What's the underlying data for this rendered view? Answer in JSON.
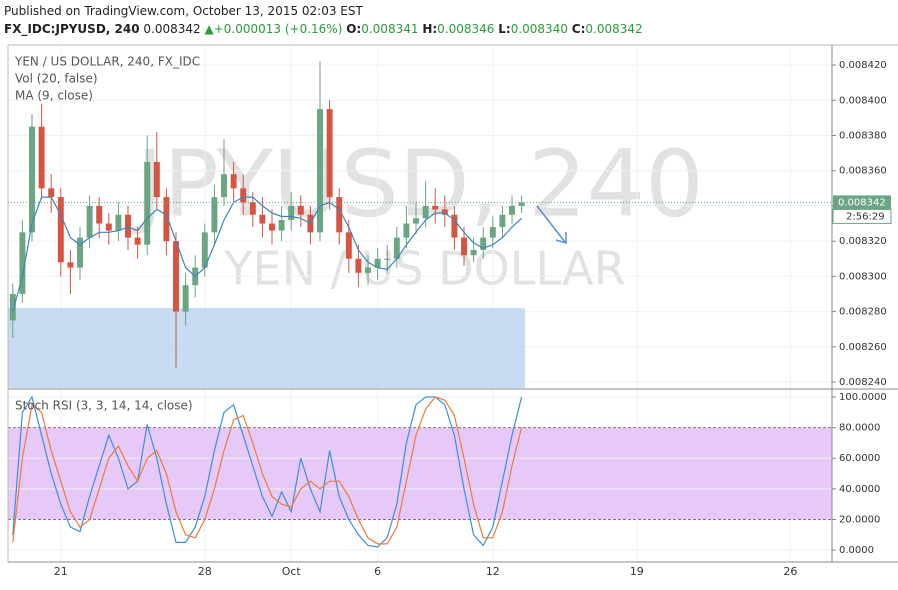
{
  "header": {
    "published": "Published on TradingView.com, October 13, 2015 02:03 EST",
    "symbol": "FX_IDC:JPYUSD, 240",
    "price": "0.008342",
    "change": "+0.000013 (+0.16%)",
    "ohlc": [
      {
        "label": "O:",
        "value": "0.008341"
      },
      {
        "label": "H:",
        "value": "0.008346"
      },
      {
        "label": "L:",
        "value": "0.008340"
      },
      {
        "label": "C:",
        "value": "0.008342"
      }
    ]
  },
  "chart_data": [
    {
      "type": "candlestick",
      "title": "YEN / US DOLLAR, 240, FX_IDC",
      "volume_label": "Vol (20, false)",
      "watermark": "JPYUSD, 240",
      "watermark_subtitle": "YEN / US DOLLAR",
      "up_color": "#6ba583",
      "down_color": "#d75442",
      "grid": true,
      "x": [
        0,
        1,
        2,
        3,
        4,
        5,
        6,
        7,
        8,
        9,
        10,
        11,
        12,
        13,
        14,
        15,
        16,
        17,
        18,
        19,
        20,
        21,
        22,
        23,
        24,
        25,
        26,
        27,
        28,
        29,
        30,
        31,
        32,
        33,
        34,
        35,
        36,
        37,
        38,
        39,
        40,
        41,
        42,
        43,
        44,
        45,
        46,
        47,
        48,
        49,
        50,
        51,
        52,
        53
      ],
      "open": [
        0.008275,
        0.00829,
        0.008325,
        0.008385,
        0.00835,
        0.008345,
        0.008308,
        0.008305,
        0.008322,
        0.00834,
        0.00833,
        0.008326,
        0.008335,
        0.008322,
        0.008318,
        0.008365,
        0.008345,
        0.00832,
        0.00828,
        0.008295,
        0.008305,
        0.008325,
        0.008345,
        0.008358,
        0.00835,
        0.008342,
        0.008335,
        0.00833,
        0.008326,
        0.008332,
        0.00834,
        0.008335,
        0.008325,
        0.008395,
        0.008345,
        0.008325,
        0.00831,
        0.008302,
        0.008305,
        0.00831,
        0.00831,
        0.008322,
        0.00833,
        0.008333,
        0.00834,
        0.008338,
        0.008335,
        0.008322,
        0.008312,
        0.008315,
        0.008322,
        0.008328,
        0.008335,
        0.00834
      ],
      "high": [
        0.008296,
        0.008332,
        0.008392,
        0.008398,
        0.008358,
        0.00835,
        0.008315,
        0.008328,
        0.008346,
        0.008345,
        0.008336,
        0.008342,
        0.00834,
        0.008328,
        0.00838,
        0.008382,
        0.00835,
        0.008325,
        0.008302,
        0.008312,
        0.00833,
        0.008352,
        0.008378,
        0.008365,
        0.008358,
        0.008348,
        0.008345,
        0.008338,
        0.00834,
        0.008348,
        0.008346,
        0.00834,
        0.008422,
        0.0084,
        0.00835,
        0.008332,
        0.008318,
        0.008312,
        0.008316,
        0.008318,
        0.008328,
        0.00834,
        0.008342,
        0.008354,
        0.00835,
        0.008346,
        0.00834,
        0.008328,
        0.008322,
        0.008328,
        0.008334,
        0.00834,
        0.008346,
        0.008346
      ],
      "low": [
        0.008265,
        0.008285,
        0.00832,
        0.008344,
        0.008336,
        0.0083,
        0.00829,
        0.008298,
        0.008316,
        0.008322,
        0.008318,
        0.00832,
        0.008315,
        0.00831,
        0.008312,
        0.008338,
        0.008312,
        0.008248,
        0.008272,
        0.008288,
        0.0083,
        0.008318,
        0.00834,
        0.008342,
        0.008335,
        0.008328,
        0.008322,
        0.008318,
        0.00832,
        0.008326,
        0.008328,
        0.008318,
        0.00832,
        0.008338,
        0.008318,
        0.008302,
        0.008294,
        0.008295,
        0.008298,
        0.008302,
        0.008305,
        0.008316,
        0.008324,
        0.008328,
        0.00833,
        0.008328,
        0.008315,
        0.008306,
        0.008308,
        0.00831,
        0.008316,
        0.008322,
        0.00833,
        0.008336
      ],
      "close": [
        0.00829,
        0.008325,
        0.008385,
        0.00835,
        0.008345,
        0.008308,
        0.008305,
        0.008322,
        0.00834,
        0.00833,
        0.008326,
        0.008335,
        0.008322,
        0.008318,
        0.008365,
        0.008345,
        0.00832,
        0.00828,
        0.008295,
        0.008305,
        0.008325,
        0.008345,
        0.008358,
        0.00835,
        0.008342,
        0.008335,
        0.00833,
        0.008326,
        0.008332,
        0.00834,
        0.008335,
        0.008325,
        0.008395,
        0.008345,
        0.008325,
        0.00831,
        0.008302,
        0.008305,
        0.00831,
        0.00831,
        0.008322,
        0.00833,
        0.008333,
        0.00834,
        0.008338,
        0.008335,
        0.008322,
        0.008312,
        0.008315,
        0.008322,
        0.008328,
        0.008335,
        0.00834,
        0.008342
      ],
      "series": [
        {
          "name": "MA (9, close)",
          "color": "#3d85b8",
          "values": [
            0.00828,
            0.0083,
            0.00833,
            0.008345,
            0.008345,
            0.008335,
            0.008322,
            0.008318,
            0.008322,
            0.008325,
            0.008325,
            0.008326,
            0.008328,
            0.008326,
            0.008333,
            0.008338,
            0.008335,
            0.00832,
            0.008305,
            0.0083,
            0.008305,
            0.008318,
            0.008332,
            0.008342,
            0.008345,
            0.008345,
            0.00834,
            0.008336,
            0.008334,
            0.008334,
            0.008333,
            0.00833,
            0.00834,
            0.008342,
            0.008338,
            0.008328,
            0.008315,
            0.008308,
            0.008305,
            0.008304,
            0.00831,
            0.008318,
            0.008325,
            0.008332,
            0.008336,
            0.008336,
            0.008332,
            0.008325,
            0.008319,
            0.008316,
            0.008318,
            0.008322,
            0.008328,
            0.008333
          ]
        }
      ],
      "last_price": 0.008342,
      "countdown": "2:56:29",
      "xlim": [
        -0.5,
        85.33
      ],
      "xticks": [
        {
          "value": 5,
          "label": "21"
        },
        {
          "value": 20,
          "label": "28"
        },
        {
          "value": 29,
          "label": "Oct"
        },
        {
          "value": 38,
          "label": "6"
        },
        {
          "value": 50,
          "label": "12"
        },
        {
          "value": 65,
          "label": "19"
        },
        {
          "value": 81,
          "label": "26"
        }
      ],
      "ylim": [
        0.0082366,
        0.0084314
      ],
      "yticks": [
        {
          "value": 0.00824,
          "label": "0.008240"
        },
        {
          "value": 0.00826,
          "label": "0.008260"
        },
        {
          "value": 0.00828,
          "label": "0.008280"
        },
        {
          "value": 0.0083,
          "label": "0.008300"
        },
        {
          "value": 0.00832,
          "label": "0.008320"
        },
        {
          "value": 0.00834,
          "label": "0.008340"
        },
        {
          "value": 0.00836,
          "label": "0.008360"
        },
        {
          "value": 0.00838,
          "label": "0.008380"
        },
        {
          "value": 0.0084,
          "label": "0.008400"
        },
        {
          "value": 0.00842,
          "label": "0.008420"
        }
      ]
    },
    {
      "type": "line",
      "title": "Stoch RSI (3, 3, 14, 14, close)",
      "grid": true,
      "x": [
        0,
        1,
        2,
        3,
        4,
        5,
        6,
        7,
        8,
        9,
        10,
        11,
        12,
        13,
        14,
        15,
        16,
        17,
        18,
        19,
        20,
        21,
        22,
        23,
        24,
        25,
        26,
        27,
        28,
        29,
        30,
        31,
        32,
        33,
        34,
        35,
        36,
        37,
        38,
        39,
        40,
        41,
        42,
        43,
        44,
        45,
        46,
        47,
        48,
        49,
        50,
        51,
        52,
        53
      ],
      "band": [
        20,
        80
      ],
      "band_color": "#e6c9f8",
      "series": [
        {
          "color": "#3d8fd6",
          "values": [
            10,
            90,
            100,
            75,
            50,
            30,
            15,
            12,
            35,
            55,
            75,
            60,
            40,
            45,
            82,
            60,
            30,
            5,
            5,
            15,
            35,
            65,
            90,
            95,
            75,
            55,
            35,
            22,
            38,
            25,
            60,
            40,
            25,
            65,
            35,
            20,
            10,
            3,
            2,
            8,
            30,
            70,
            95,
            100,
            100,
            95,
            75,
            40,
            10,
            3,
            15,
            45,
            75,
            100
          ]
        },
        {
          "color": "#f07a35",
          "values": [
            5,
            60,
            95,
            90,
            65,
            45,
            25,
            15,
            20,
            40,
            60,
            68,
            55,
            45,
            60,
            65,
            50,
            25,
            10,
            8,
            20,
            40,
            65,
            85,
            88,
            70,
            50,
            35,
            30,
            28,
            40,
            45,
            40,
            45,
            45,
            35,
            20,
            8,
            4,
            4,
            15,
            45,
            75,
            92,
            100,
            98,
            88,
            60,
            30,
            8,
            8,
            25,
            55,
            80
          ]
        }
      ],
      "xlim": [
        -0.5,
        85.33
      ],
      "ylim": [
        -7.8,
        104.6
      ],
      "yticks": [
        {
          "value": 0,
          "label": "0.0000"
        },
        {
          "value": 20,
          "label": "20.0000"
        },
        {
          "value": 40,
          "label": "40.0000"
        },
        {
          "value": 60,
          "label": "60.0000"
        },
        {
          "value": 80,
          "label": "80.0000"
        },
        {
          "value": 100,
          "label": "100.0000"
        }
      ]
    }
  ]
}
